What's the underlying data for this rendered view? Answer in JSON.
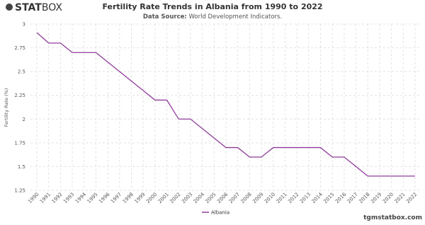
{
  "logo": {
    "bold": "STAT",
    "light": "BOX"
  },
  "footer": "tgmstatbox.com",
  "chart_data": {
    "type": "line",
    "title": "Fertility Rate Trends in Albania from 1990 to 2022",
    "subtitle_label": "Data Source:",
    "subtitle": "World Development Indicators.",
    "y_label": "Fertility Rate (%)",
    "categories": [
      "1990",
      "1991",
      "1992",
      "1993",
      "1994",
      "1995",
      "1996",
      "1997",
      "1998",
      "1999",
      "2000",
      "2001",
      "2002",
      "2003",
      "2004",
      "2005",
      "2006",
      "2007",
      "2008",
      "2009",
      "2010",
      "2011",
      "2012",
      "2013",
      "2014",
      "2015",
      "2016",
      "2017",
      "2018",
      "2019",
      "2020",
      "2021",
      "2022"
    ],
    "series": [
      {
        "name": "Albania",
        "color": "#8e3c99",
        "values": [
          2.91,
          2.8,
          2.8,
          2.7,
          2.7,
          2.7,
          2.6,
          2.5,
          2.4,
          2.3,
          2.2,
          2.2,
          2.0,
          2.0,
          1.9,
          1.8,
          1.7,
          1.7,
          1.6,
          1.6,
          1.7,
          1.7,
          1.7,
          1.7,
          1.7,
          1.6,
          1.6,
          1.5,
          1.4,
          1.4,
          1.4,
          1.4,
          1.4
        ]
      }
    ],
    "ylim": [
      1.25,
      3
    ],
    "yticks": [
      1.25,
      1.5,
      1.75,
      2,
      2.25,
      2.5,
      2.75,
      3
    ],
    "grid": true
  }
}
